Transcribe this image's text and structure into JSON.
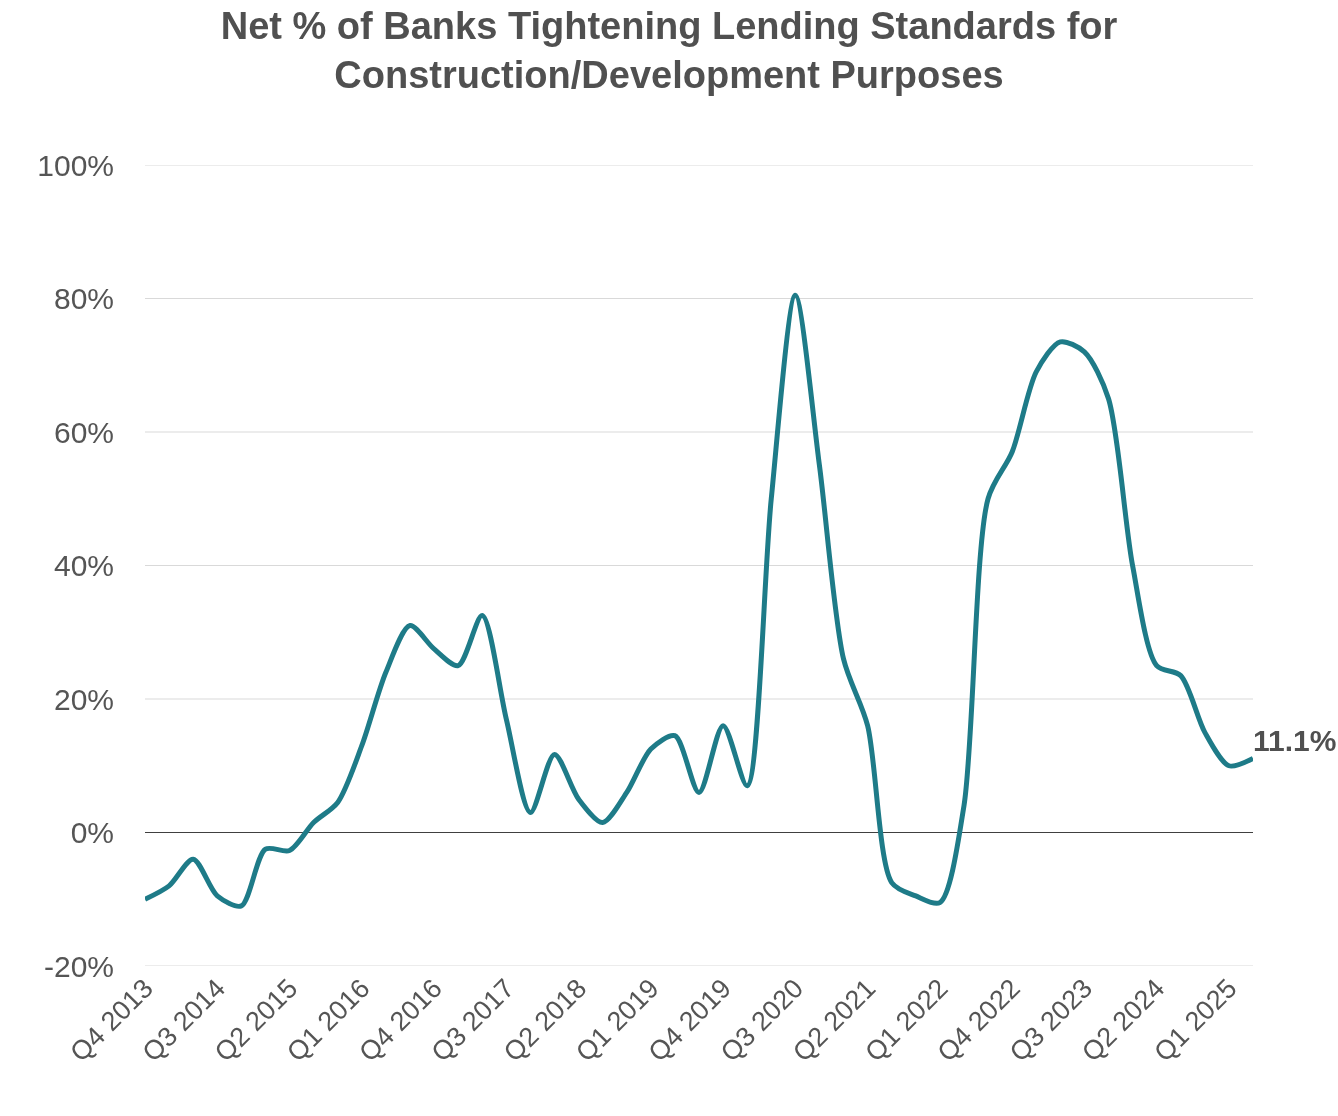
{
  "chart_data": {
    "type": "line",
    "title": "Net % of Banks Tightening Lending Standards for Construction/Development Purposes",
    "categories": [
      "Q4 2013",
      null,
      null,
      "Q3 2014",
      null,
      null,
      "Q2 2015",
      null,
      null,
      "Q1 2016",
      null,
      null,
      "Q4 2016",
      null,
      null,
      "Q3 2017",
      null,
      null,
      "Q2 2018",
      null,
      null,
      "Q1 2019",
      null,
      null,
      "Q4 2019",
      null,
      null,
      "Q3 2020",
      null,
      null,
      "Q2 2021",
      null,
      null,
      "Q1 2022",
      null,
      null,
      "Q4 2022",
      null,
      null,
      "Q3 2023",
      null,
      null,
      "Q2 2024",
      null,
      null,
      "Q1 2025",
      null
    ],
    "series": [
      {
        "color": "#1e7b88",
        "values": [
          -10,
          -8,
          -4,
          -9.5,
          -11,
          -2.5,
          -2.7,
          1.5,
          4.5,
          13,
          24,
          31,
          27.5,
          25,
          32.5,
          17,
          3,
          11.7,
          5,
          1.5,
          6,
          12.5,
          14.5,
          6,
          16,
          7,
          50,
          80.5,
          55,
          26,
          16,
          -7.5,
          -9.5,
          -10.5,
          4,
          50,
          57,
          69,
          73.5,
          72,
          65,
          40,
          25,
          23.5,
          15,
          10,
          11.1
        ],
        "value_labels": [
          null,
          null,
          null,
          null,
          null,
          null,
          null,
          null,
          null,
          null,
          null,
          null,
          null,
          null,
          null,
          null,
          null,
          null,
          null,
          null,
          null,
          null,
          null,
          null,
          null,
          null,
          null,
          null,
          null,
          null,
          null,
          null,
          null,
          null,
          null,
          null,
          null,
          null,
          null,
          null,
          null,
          null,
          null,
          null,
          null,
          null,
          "11.1%"
        ]
      }
    ],
    "ylim": [
      -20,
      100
    ],
    "yticks": [
      {
        "value": -20,
        "label": "-20%"
      },
      {
        "value": 0,
        "label": "0%"
      },
      {
        "value": 20,
        "label": "20%"
      },
      {
        "value": 40,
        "label": "40%"
      },
      {
        "value": 60,
        "label": "60%"
      },
      {
        "value": 80,
        "label": "80%"
      },
      {
        "value": 100,
        "label": "100%"
      }
    ],
    "ref_lines": [
      {
        "axis": "y",
        "value": 0,
        "color": "#404040"
      }
    ],
    "grid": "y",
    "marker": "none",
    "line_style": "solid"
  }
}
